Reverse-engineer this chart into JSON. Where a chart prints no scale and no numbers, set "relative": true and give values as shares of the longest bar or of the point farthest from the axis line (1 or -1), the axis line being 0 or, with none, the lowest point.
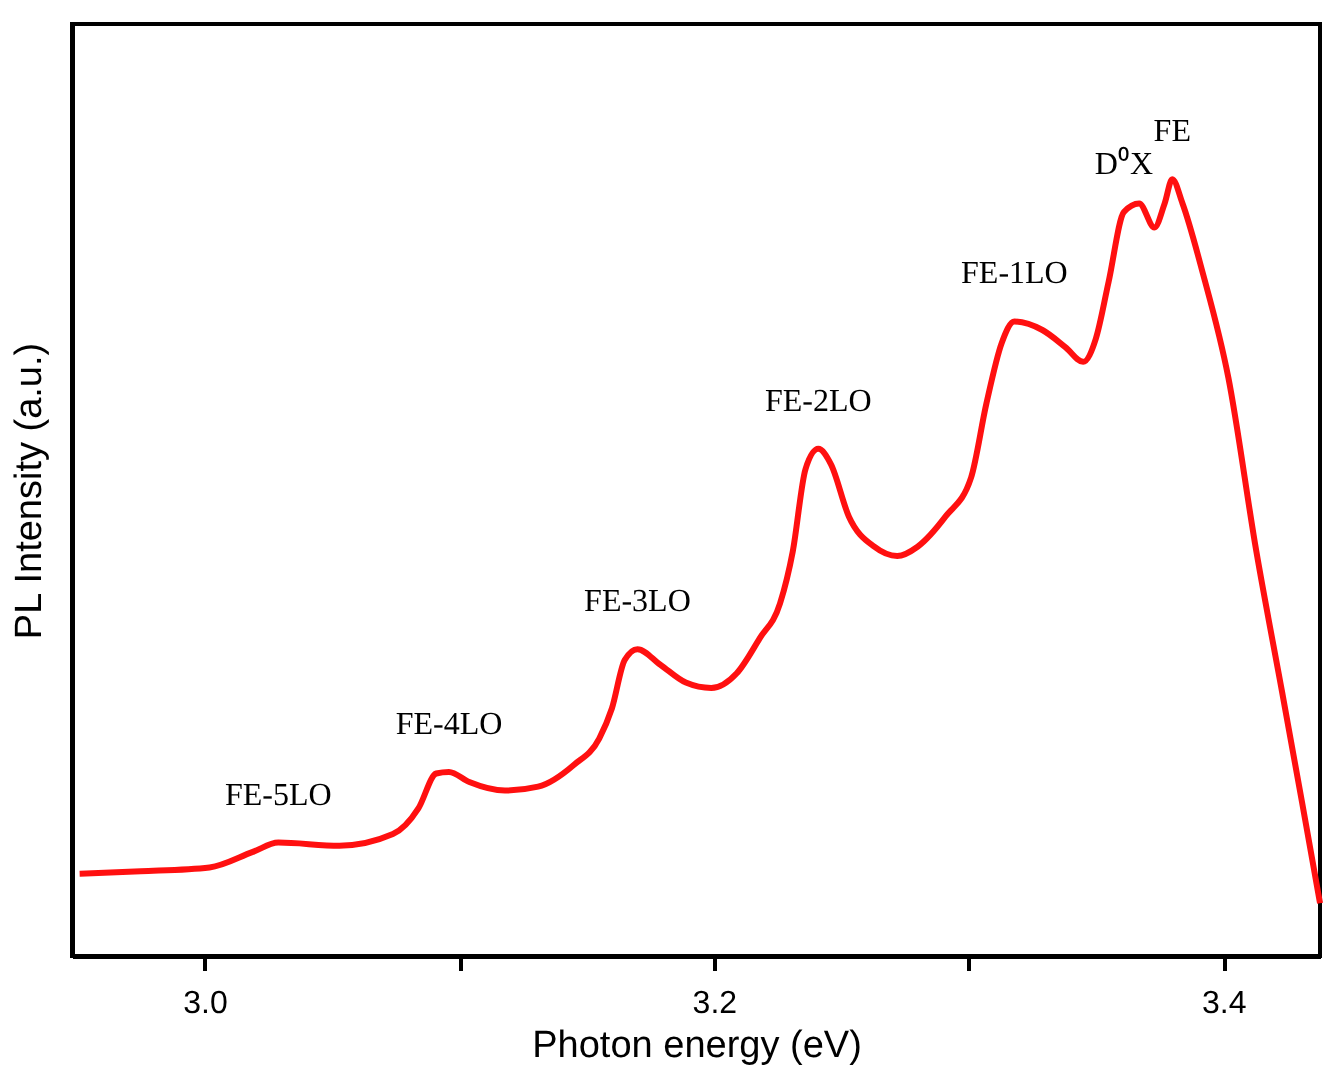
{
  "chart_data": {
    "type": "line",
    "xlabel": "Photon energy (eV)",
    "ylabel": "PL Intensity (a.u.)",
    "relative": true,
    "grid": false,
    "marker": "none",
    "line_style": "solid",
    "xlim": [
      2.948,
      3.438
    ],
    "xticks": [
      {
        "value": 3.0,
        "label": "3.0"
      },
      {
        "value": 3.1,
        "label": null
      },
      {
        "value": 3.2,
        "label": "3.2"
      },
      {
        "value": 3.3,
        "label": null
      },
      {
        "value": 3.4,
        "label": "3.4"
      }
    ],
    "series": [
      {
        "color": "#ff1010",
        "x": [
          2.951,
          2.975,
          3.002,
          3.019,
          3.029,
          3.053,
          3.074,
          3.084,
          3.091,
          3.096,
          3.104,
          3.118,
          3.131,
          3.145,
          3.155,
          3.16,
          3.165,
          3.17,
          3.179,
          3.189,
          3.199,
          3.209,
          3.218,
          3.226,
          3.231,
          3.236,
          3.241,
          3.246,
          3.253,
          3.263,
          3.272,
          3.28,
          3.291,
          3.301,
          3.307,
          3.313,
          3.318,
          3.329,
          3.338,
          3.345,
          3.35,
          3.355,
          3.361,
          3.367,
          3.373,
          3.377,
          3.38,
          3.384,
          3.392,
          3.402,
          3.413,
          3.423,
          3.431,
          3.438
        ],
        "values": [
          0.106,
          0.109,
          0.114,
          0.134,
          0.146,
          0.142,
          0.157,
          0.19,
          0.235,
          0.237,
          0.224,
          0.213,
          0.218,
          0.246,
          0.28,
          0.319,
          0.381,
          0.395,
          0.375,
          0.352,
          0.345,
          0.364,
          0.409,
          0.454,
          0.521,
          0.627,
          0.653,
          0.633,
          0.566,
          0.527,
          0.515,
          0.527,
          0.566,
          0.616,
          0.711,
          0.789,
          0.817,
          0.806,
          0.784,
          0.765,
          0.795,
          0.868,
          0.958,
          0.969,
          0.938,
          0.969,
          1.0,
          0.969,
          0.879,
          0.745,
          0.521,
          0.342,
          0.197,
          0.068
        ]
      }
    ],
    "annotations": [
      {
        "text": "FE-5LO",
        "x": 3.029,
        "y": 0.146
      },
      {
        "text": "FE-4LO",
        "x": 3.096,
        "y": 0.237
      },
      {
        "text": "FE-3LO",
        "x": 3.17,
        "y": 0.395
      },
      {
        "text": "FE-2LO",
        "x": 3.241,
        "y": 0.653
      },
      {
        "text": "FE-1LO",
        "x": 3.318,
        "y": 0.817
      },
      {
        "text": "D⁰X",
        "x": 3.361,
        "y": 0.958
      },
      {
        "text": "FE",
        "x": 3.38,
        "y": 1.0
      }
    ]
  }
}
